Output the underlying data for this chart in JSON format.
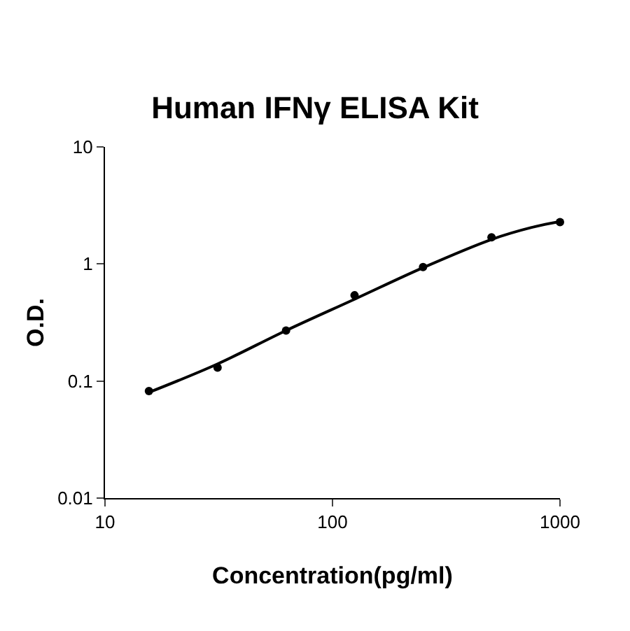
{
  "chart_data": {
    "type": "scatter",
    "title": "Human IFNγ ELISA Kit",
    "xlabel": "Concentration(pg/ml)",
    "ylabel": "O.D.",
    "log": "xy",
    "xlim": [
      10,
      1000
    ],
    "xticks": [
      10,
      100,
      1000
    ],
    "ylim": [
      0.01,
      10
    ],
    "yticks": [
      0.01,
      0.1,
      1,
      10
    ],
    "grid": false,
    "legend": false,
    "series": [
      {
        "marker": "circle",
        "color": "#000000",
        "x": [
          15.6,
          31.25,
          62.5,
          125,
          250,
          500,
          1000
        ],
        "values": [
          0.082,
          0.13,
          0.27,
          0.54,
          0.94,
          1.69,
          2.28
        ]
      },
      {
        "type": "line",
        "marker": "none",
        "line_style": "solid",
        "color": "#000000",
        "x": [
          15.6,
          31.25,
          62.5,
          125,
          250,
          500,
          750,
          1000
        ],
        "values": [
          0.08,
          0.14,
          0.27,
          0.5,
          0.93,
          1.62,
          2.05,
          2.3
        ]
      }
    ]
  }
}
